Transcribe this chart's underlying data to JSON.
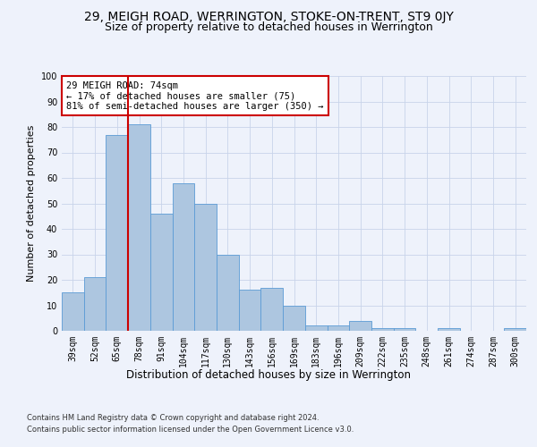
{
  "title1": "29, MEIGH ROAD, WERRINGTON, STOKE-ON-TRENT, ST9 0JY",
  "title2": "Size of property relative to detached houses in Werrington",
  "xlabel": "Distribution of detached houses by size in Werrington",
  "ylabel": "Number of detached properties",
  "categories": [
    "39sqm",
    "52sqm",
    "65sqm",
    "78sqm",
    "91sqm",
    "104sqm",
    "117sqm",
    "130sqm",
    "143sqm",
    "156sqm",
    "169sqm",
    "183sqm",
    "196sqm",
    "209sqm",
    "222sqm",
    "235sqm",
    "248sqm",
    "261sqm",
    "274sqm",
    "287sqm",
    "300sqm"
  ],
  "values": [
    15,
    21,
    77,
    81,
    46,
    58,
    50,
    30,
    16,
    17,
    10,
    2,
    2,
    4,
    1,
    1,
    0,
    1,
    0,
    0,
    1
  ],
  "bar_color": "#adc6e0",
  "bar_edge_color": "#5b9bd5",
  "bar_width": 1.0,
  "vline_x": 2.5,
  "vline_color": "#cc0000",
  "annotation_text": "29 MEIGH ROAD: 74sqm\n← 17% of detached houses are smaller (75)\n81% of semi-detached houses are larger (350) →",
  "annotation_box_color": "#ffffff",
  "annotation_box_edge": "#cc0000",
  "ylim": [
    0,
    100
  ],
  "yticks": [
    0,
    10,
    20,
    30,
    40,
    50,
    60,
    70,
    80,
    90,
    100
  ],
  "footer1": "Contains HM Land Registry data © Crown copyright and database right 2024.",
  "footer2": "Contains public sector information licensed under the Open Government Licence v3.0.",
  "bg_color": "#eef2fb",
  "plot_bg_color": "#eef2fb",
  "grid_color": "#c8d4ea",
  "title1_fontsize": 10,
  "title2_fontsize": 9,
  "xlabel_fontsize": 8.5,
  "ylabel_fontsize": 8,
  "tick_fontsize": 7,
  "annotation_fontsize": 7.5,
  "footer_fontsize": 6
}
